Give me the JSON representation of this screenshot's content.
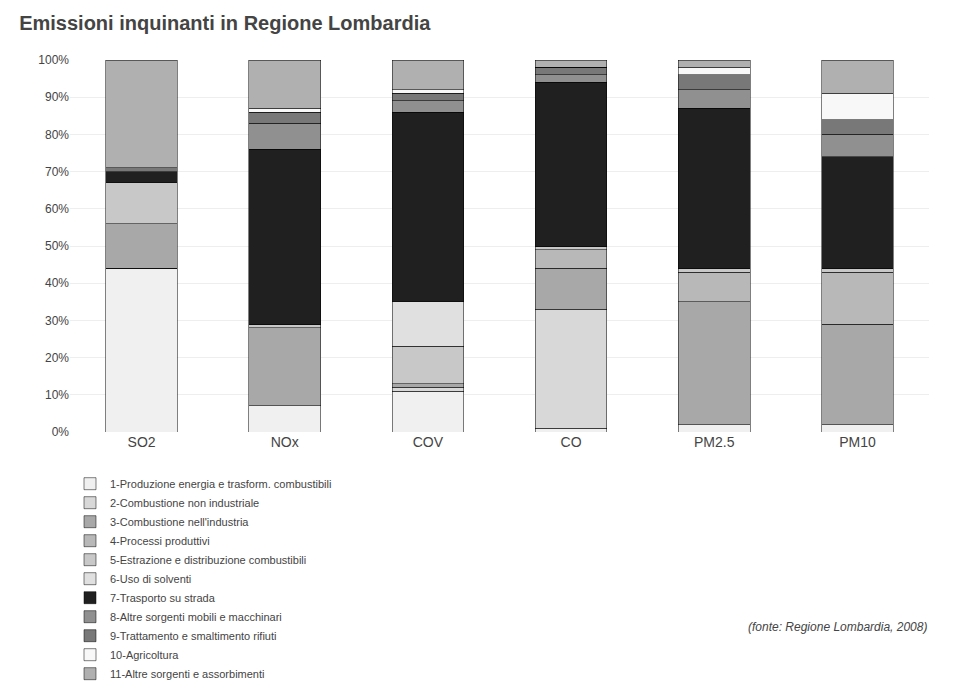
{
  "chart_data": {
    "type": "bar",
    "stacked": true,
    "title": "Emissioni inquinanti in Regione Lombardia",
    "annotations": [
      "(fonte: Regione Lombardia, 2008)"
    ],
    "categories": [
      "SO2",
      "NOx",
      "COV",
      "CO",
      "PM2.5",
      "PM10"
    ],
    "series": [
      {
        "name": "1-Produzione energia e trasform. combustibili",
        "color": "#f0f0f0",
        "values": [
          44,
          7,
          11,
          1,
          2,
          2
        ]
      },
      {
        "name": "2-Combustione non industriale",
        "color": "#d8d8d8",
        "values": [
          0,
          0,
          1,
          32,
          0,
          0
        ]
      },
      {
        "name": "3-Combustione nell'industria",
        "color": "#a8a8a8",
        "values": [
          12,
          21,
          1,
          11,
          33,
          27
        ]
      },
      {
        "name": "4-Processi produttivi",
        "color": "#b8b8b8",
        "values": [
          0,
          0,
          0,
          5,
          8,
          14
        ]
      },
      {
        "name": "5-Estrazione e distribuzione combustibili",
        "color": "#c8c8c8",
        "values": [
          11,
          1,
          10,
          1,
          1,
          1
        ]
      },
      {
        "name": "6-Uso di solventi",
        "color": "#e0e0e0",
        "values": [
          0,
          0,
          12,
          0,
          0,
          0
        ]
      },
      {
        "name": "7-Trasporto su strada",
        "color": "#202020",
        "values": [
          3,
          47,
          51,
          44,
          43,
          30
        ]
      },
      {
        "name": "8-Altre sorgenti mobili e macchinari",
        "color": "#909090",
        "values": [
          0,
          7,
          3,
          2,
          5,
          6
        ]
      },
      {
        "name": "9-Trattamento e smaltimento rifiuti",
        "color": "#787878",
        "values": [
          1,
          3,
          2,
          2,
          4,
          4
        ]
      },
      {
        "name": "10-Agricoltura",
        "color": "#f8f8f8",
        "values": [
          0,
          1,
          1,
          0,
          2,
          7
        ]
      },
      {
        "name": "11-Altre sorgenti e assorbimenti",
        "color": "#b0b0b0",
        "values": [
          29,
          13,
          8,
          2,
          2,
          9
        ]
      }
    ],
    "ylim": [
      0,
      100
    ],
    "yticks": [
      {
        "value": 0,
        "label": "0%"
      },
      {
        "value": 10,
        "label": "10%"
      },
      {
        "value": 20,
        "label": "20%"
      },
      {
        "value": 30,
        "label": "30%"
      },
      {
        "value": 40,
        "label": "40%"
      },
      {
        "value": 50,
        "label": "50%"
      },
      {
        "value": 60,
        "label": "60%"
      },
      {
        "value": 70,
        "label": "70%"
      },
      {
        "value": 80,
        "label": "80%"
      },
      {
        "value": 90,
        "label": "90%"
      },
      {
        "value": 100,
        "label": "100%"
      }
    ],
    "grid": true,
    "legend": "bottom"
  }
}
